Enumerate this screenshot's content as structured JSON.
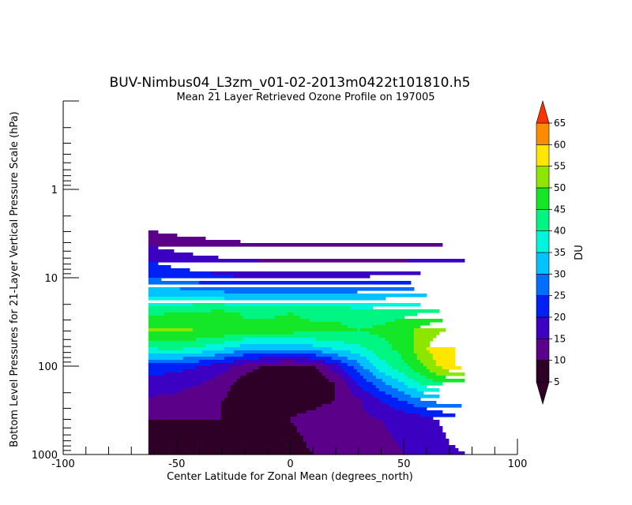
{
  "chart_data": {
    "type": "heatmap",
    "title": "BUV-Nimbus04_L3zm_v01-02-2013m0422t101810.h5",
    "subtitle": "Mean 21 Layer Retrieved Ozone Profile on 197005",
    "xlabel": "Center Latitude for Zonal Mean (degrees_north)",
    "ylabel": "Bottom Level Pressures for 21-Layer Vertical Pressure Scale (hPa)",
    "xlim": [
      -100,
      100
    ],
    "ylim": [
      1000,
      0.1
    ],
    "y_scale": "log",
    "x_ticks": [
      "-100",
      "-50",
      "0",
      "50",
      "100"
    ],
    "y_ticks": [
      "1",
      "10",
      "100",
      "1000"
    ],
    "data_extent_x": [
      -62.5,
      77.5
    ],
    "colorbar": {
      "label": "DU",
      "levels": [
        "5",
        "10",
        "15",
        "20",
        "25",
        "30",
        "35",
        "40",
        "45",
        "50",
        "55",
        "60",
        "65"
      ],
      "colors": [
        "#2e0028",
        "#5b0088",
        "#3c00c2",
        "#0020f5",
        "#006fff",
        "#00c3ff",
        "#00f5dc",
        "#00f582",
        "#14e628",
        "#8ce600",
        "#ffe600",
        "#ff8c00",
        "#ff3200"
      ],
      "extend": "both"
    },
    "profiles": {
      "lats": [
        -62.5,
        -50,
        -40,
        -30,
        -20,
        -10,
        0,
        10,
        20,
        30,
        40,
        50,
        60,
        70,
        77.5
      ],
      "pressures": [
        0.1,
        1.5,
        2.5,
        4,
        6,
        10,
        15,
        25,
        40,
        63,
        100,
        160,
        250,
        400,
        1000
      ],
      "values": [
        [
          1,
          1,
          1,
          1,
          1,
          1,
          1,
          1,
          1,
          1,
          1,
          1,
          1,
          1,
          1
        ],
        [
          1,
          1,
          1,
          1,
          1,
          1,
          1,
          1,
          1,
          1,
          1,
          1,
          1,
          1,
          1
        ],
        [
          8,
          7,
          7,
          6,
          6,
          6,
          6,
          6,
          6,
          6,
          6,
          6,
          6,
          5,
          5
        ],
        [
          14,
          12,
          11,
          11,
          10,
          10,
          10,
          10,
          10,
          10,
          10,
          10,
          10,
          9,
          9
        ],
        [
          19,
          17,
          16,
          15,
          15,
          14,
          14,
          14,
          14,
          14,
          14,
          14,
          15,
          15,
          14
        ],
        [
          25,
          23,
          22,
          21,
          20,
          20,
          20,
          20,
          20,
          20,
          21,
          21,
          22,
          22,
          22
        ],
        [
          34,
          33,
          32,
          31,
          30,
          30,
          30,
          30,
          30,
          31,
          32,
          33,
          34,
          35,
          35
        ],
        [
          44,
          45,
          46,
          47,
          44,
          44,
          45,
          44,
          44,
          43,
          43,
          44,
          45,
          47,
          47
        ],
        [
          51,
          51,
          50,
          49,
          47,
          47,
          47,
          46,
          46,
          45,
          46,
          48,
          53,
          56,
          57
        ],
        [
          40,
          41,
          39,
          36,
          32,
          32,
          31,
          33,
          36,
          39,
          43,
          47,
          55,
          60,
          60
        ],
        [
          22,
          22,
          20,
          17,
          13,
          9,
          9,
          10,
          18,
          28,
          38,
          44,
          51,
          59,
          62
        ],
        [
          18,
          17,
          15,
          12,
          7,
          4,
          4,
          4,
          10,
          20,
          28,
          35,
          42,
          46,
          47
        ],
        [
          14,
          13,
          11,
          10,
          8,
          9,
          9,
          9,
          10,
          14,
          20,
          25,
          30,
          32,
          32
        ],
        [
          10,
          10,
          10,
          10,
          10,
          10,
          10,
          11,
          14,
          14,
          15,
          16,
          18,
          22,
          24
        ],
        [
          9,
          9,
          9,
          9,
          9,
          9,
          9,
          10,
          12,
          14,
          14,
          15,
          17,
          19,
          20
        ]
      ]
    }
  }
}
